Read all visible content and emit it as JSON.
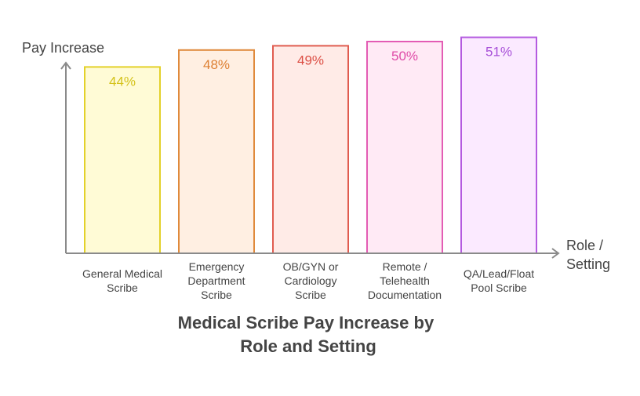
{
  "chart_data": {
    "type": "bar",
    "title_lines": [
      "Medical Scribe Pay Increase by",
      "Role and Setting"
    ],
    "ylabel": "Pay Increase",
    "xlabel_lines": [
      "Role /",
      "Setting"
    ],
    "categories": [
      [
        "General Medical",
        "Scribe"
      ],
      [
        "Emergency",
        "Department",
        "Scribe"
      ],
      [
        "OB/GYN or",
        "Cardiology",
        "Scribe"
      ],
      [
        "Remote /",
        "Telehealth",
        "Documentation"
      ],
      [
        "QA/Lead/Float",
        "Pool Scribe"
      ]
    ],
    "values": [
      44,
      48,
      49,
      50,
      51
    ],
    "value_labels": [
      "44%",
      "48%",
      "49%",
      "50%",
      "51%"
    ],
    "ylim": [
      0,
      55
    ],
    "grid": false,
    "colors": {
      "axis": "#8a8a8a",
      "text": "#444444",
      "bars": [
        {
          "fill": "#fffbd6",
          "stroke": "#e3d12a",
          "label": "#d4c21a"
        },
        {
          "fill": "#ffefe2",
          "stroke": "#e08a3c",
          "label": "#de8033"
        },
        {
          "fill": "#ffebe7",
          "stroke": "#e05c50",
          "label": "#dc4f45"
        },
        {
          "fill": "#ffeaf5",
          "stroke": "#e35cb4",
          "label": "#df4ba8"
        },
        {
          "fill": "#fbeaff",
          "stroke": "#b45be0",
          "label": "#a74fd8"
        }
      ]
    }
  }
}
